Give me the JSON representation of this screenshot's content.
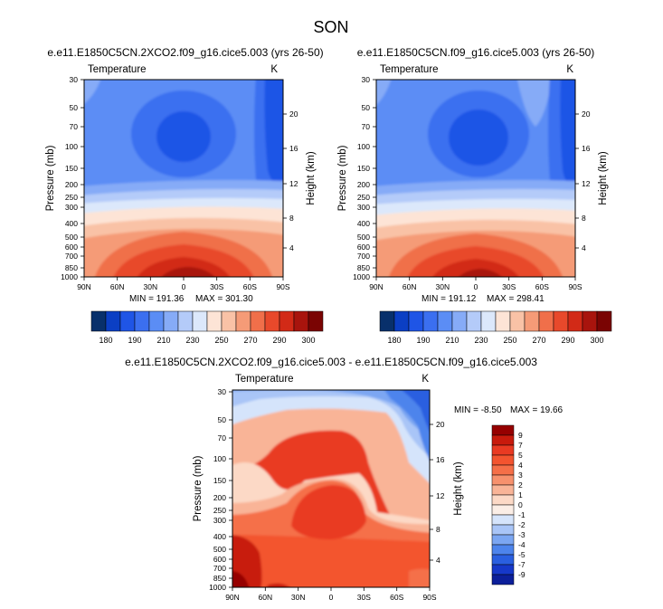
{
  "page_title": "SON",
  "chart_data": [
    {
      "type": "heatmap",
      "title": "e.e11.E1850C5CN.2XCO2.f09_g16.cice5.003 (yrs 26-50)",
      "variable": "Temperature",
      "units": "K",
      "xlabel": "",
      "ylabel": "Pressure (mb)",
      "ylabel_right": "Height (km)",
      "x_ticks": [
        "90N",
        "60N",
        "30N",
        "0",
        "30S",
        "60S",
        "90S"
      ],
      "y_ticks": [
        "30",
        "50",
        "70",
        "100",
        "150",
        "200",
        "250",
        "300",
        "400",
        "500",
        "600",
        "700",
        "850",
        "1000"
      ],
      "y_tick_values": [
        30,
        50,
        70,
        100,
        150,
        200,
        250,
        300,
        400,
        500,
        600,
        700,
        850,
        1000
      ],
      "y_right_ticks": [
        "20",
        "16",
        "12",
        "8",
        "4"
      ],
      "y_right_values_km": [
        20,
        16,
        12,
        8,
        4
      ],
      "ylim": [
        1000,
        30
      ],
      "xlim": [
        90,
        -90
      ],
      "min_label": "MIN = 191.36",
      "max_label": "MAX = 301.30",
      "min": 191.36,
      "max": 301.3
    },
    {
      "type": "heatmap",
      "title": "e.e11.E1850C5CN.f09_g16.cice5.003 (yrs 26-50)",
      "variable": "Temperature",
      "units": "K",
      "xlabel": "",
      "ylabel": "Pressure (mb)",
      "ylabel_right": "Height (km)",
      "x_ticks": [
        "90N",
        "60N",
        "30N",
        "0",
        "30S",
        "60S",
        "90S"
      ],
      "y_ticks": [
        "30",
        "50",
        "70",
        "100",
        "150",
        "200",
        "250",
        "300",
        "400",
        "500",
        "600",
        "700",
        "850",
        "1000"
      ],
      "y_tick_values": [
        30,
        50,
        70,
        100,
        150,
        200,
        250,
        300,
        400,
        500,
        600,
        700,
        850,
        1000
      ],
      "y_right_ticks": [
        "20",
        "16",
        "12",
        "8",
        "4"
      ],
      "y_right_values_km": [
        20,
        16,
        12,
        8,
        4
      ],
      "ylim": [
        1000,
        30
      ],
      "xlim": [
        90,
        -90
      ],
      "min_label": "MIN = 191.12",
      "max_label": "MAX = 298.41",
      "min": 191.12,
      "max": 298.41
    },
    {
      "type": "heatmap",
      "title": "e.e11.E1850C5CN.2XCO2.f09_g16.cice5.003 - e.e11.E1850C5CN.f09_g16.cice5.003",
      "variable": "Temperature",
      "units": "K",
      "xlabel": "",
      "ylabel": "Pressure (mb)",
      "ylabel_right": "Height (km)",
      "x_ticks": [
        "90N",
        "60N",
        "30N",
        "0",
        "30S",
        "60S",
        "90S"
      ],
      "y_ticks": [
        "30",
        "50",
        "70",
        "100",
        "150",
        "200",
        "250",
        "300",
        "400",
        "500",
        "600",
        "700",
        "850",
        "1000"
      ],
      "y_tick_values": [
        30,
        50,
        70,
        100,
        150,
        200,
        250,
        300,
        400,
        500,
        600,
        700,
        850,
        1000
      ],
      "y_right_ticks": [
        "20",
        "16",
        "12",
        "8",
        "4"
      ],
      "y_right_values_km": [
        20,
        16,
        12,
        8,
        4
      ],
      "ylim": [
        1000,
        30
      ],
      "xlim": [
        90,
        -90
      ],
      "min_label": "MIN =  -8.50",
      "max_label": "MAX =  19.66",
      "min": -8.5,
      "max": 19.66
    }
  ],
  "abs_colorbar": {
    "labels": [
      "180",
      "190",
      "210",
      "230",
      "250",
      "270",
      "290",
      "300"
    ],
    "colors": [
      "#08306b",
      "#0b3fc4",
      "#1f55e6",
      "#3b6ff0",
      "#5b8df5",
      "#86abf7",
      "#b4cbf9",
      "#dce8fb",
      "#fde4d6",
      "#f9c2a6",
      "#f59b77",
      "#f06f4a",
      "#e8492b",
      "#d22a17",
      "#a8140d",
      "#7a0403"
    ]
  },
  "diff_colorbar": {
    "labels": [
      "9",
      "7",
      "5",
      "4",
      "3",
      "2",
      "1",
      "0",
      "-1",
      "-2",
      "-3",
      "-4",
      "-5",
      "-7",
      "-9"
    ],
    "colors": [
      "#960000",
      "#c81a0c",
      "#e93a22",
      "#f3542f",
      "#f56f48",
      "#f7916d",
      "#f9b497",
      "#fcd9c6",
      "#fbeee6",
      "#d5e4fb",
      "#a9c5f7",
      "#7ba6f2",
      "#4d84ec",
      "#2a5fe0",
      "#1638c9",
      "#0c1f9a"
    ]
  }
}
